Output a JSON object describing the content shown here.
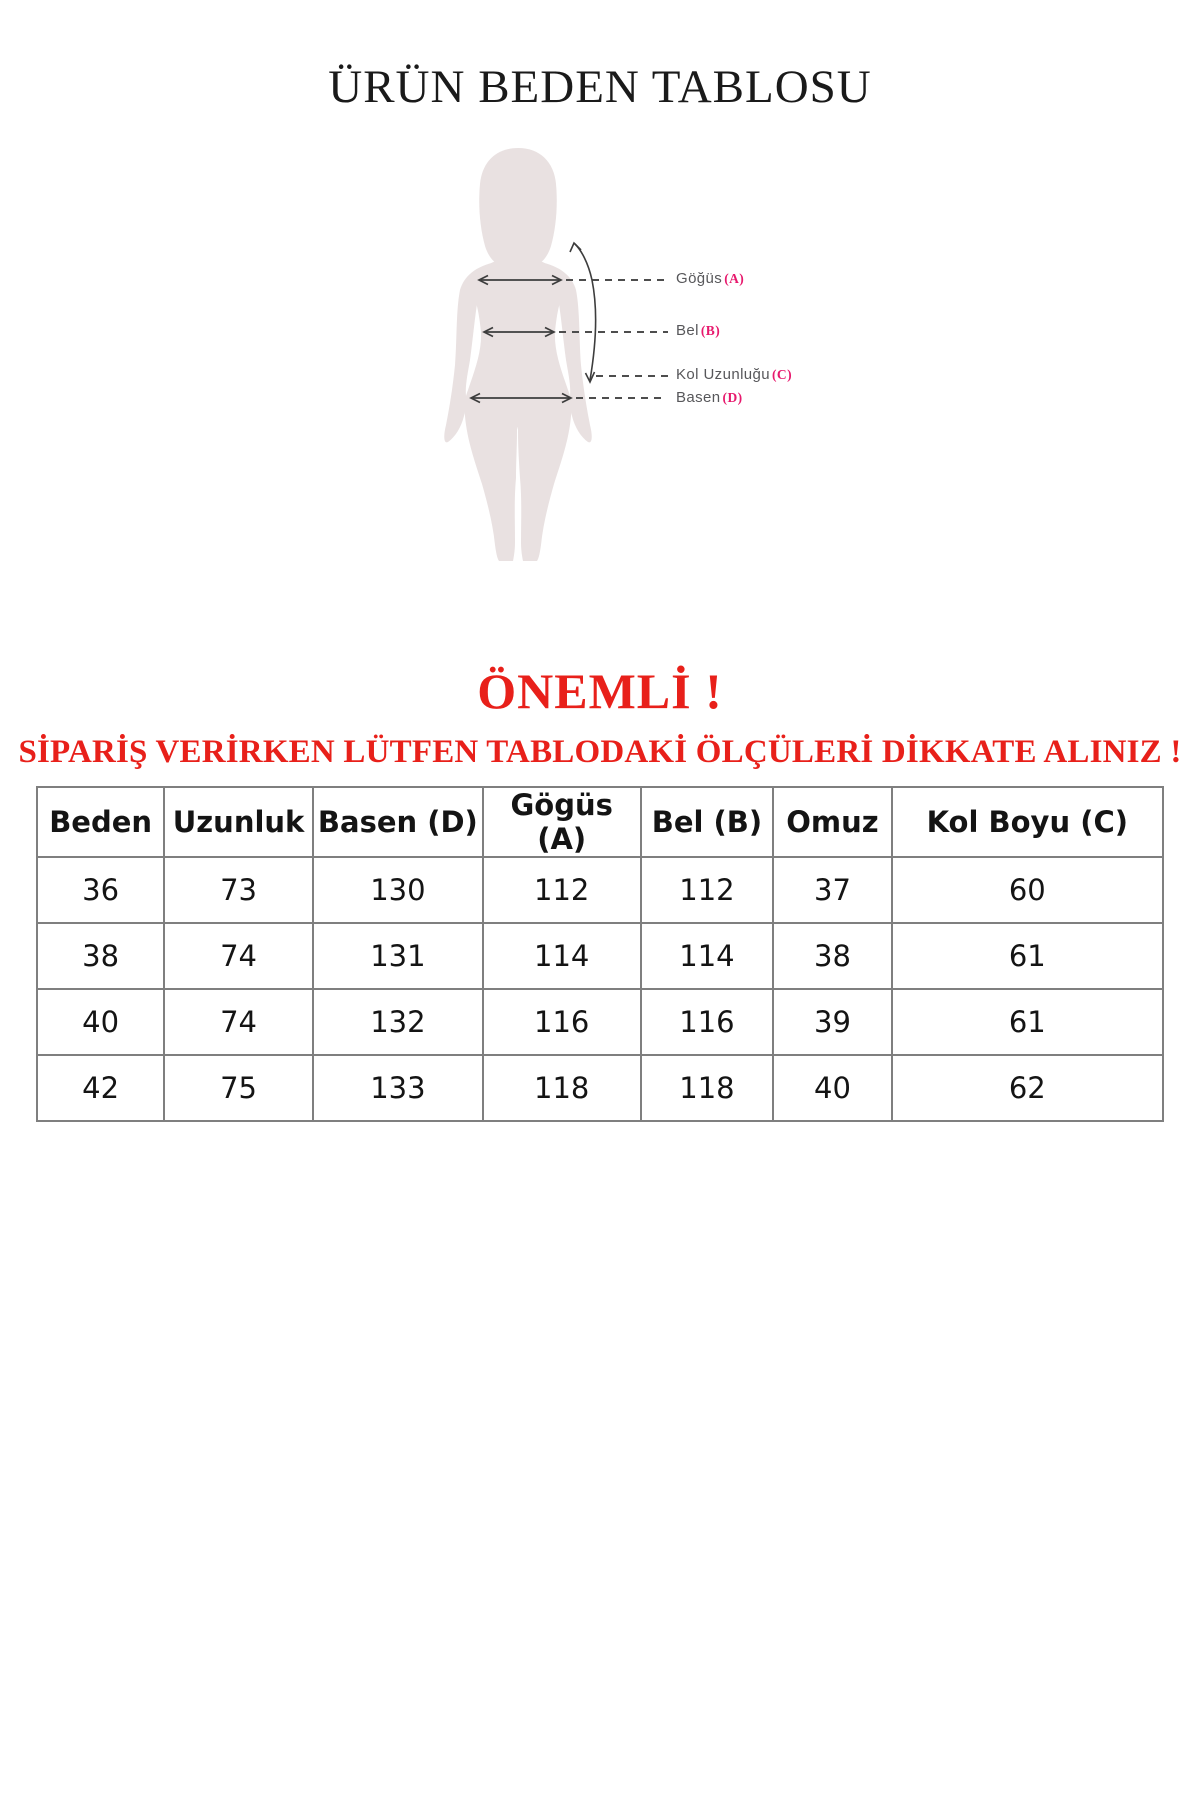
{
  "page": {
    "title": "ÜRÜN BEDEN TABLOSU",
    "background_color": "#ffffff"
  },
  "diagram": {
    "silhouette_color": "#e9e1e1",
    "label_color": "#57575a",
    "suffix_color": "#e7196d",
    "arrow_color": "#3d3d3d",
    "labels": [
      {
        "name": "Göğüs",
        "suffix": "(A)"
      },
      {
        "name": "Bel",
        "suffix": "(B)"
      },
      {
        "name": "Kol Uzunluğu",
        "suffix": "(C)"
      },
      {
        "name": "Basen",
        "suffix": "(D)"
      }
    ]
  },
  "notice": {
    "heading": "ÖNEMLİ !",
    "subheading": "SİPARİŞ VERİRKEN LÜTFEN TABLODAKİ ÖLÇÜLERİ DİKKATE ALINIZ !",
    "color": "#e8201a"
  },
  "size_table": {
    "border_color": "#7f7f7f",
    "columns": [
      "Beden",
      "Uzunluk",
      "Basen (D)",
      "Gögüs (A)",
      "Bel (B)",
      "Omuz",
      "Kol Boyu (C)"
    ],
    "rows": [
      [
        "36",
        "73",
        "130",
        "112",
        "112",
        "37",
        "60"
      ],
      [
        "38",
        "74",
        "131",
        "114",
        "114",
        "38",
        "61"
      ],
      [
        "40",
        "74",
        "132",
        "116",
        "116",
        "39",
        "61"
      ],
      [
        "42",
        "75",
        "133",
        "118",
        "118",
        "40",
        "62"
      ]
    ]
  }
}
